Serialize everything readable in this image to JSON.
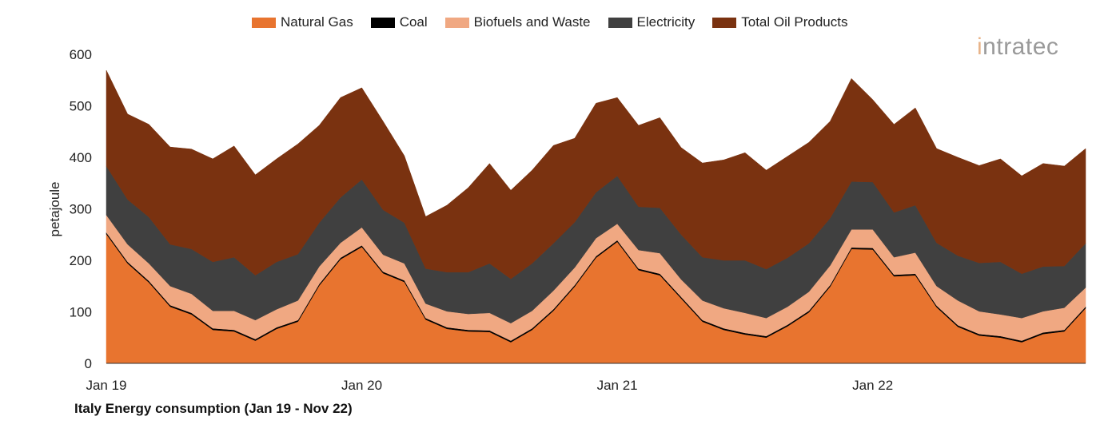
{
  "chart_data": {
    "type": "area",
    "stacked": true,
    "title": "Italy Energy consumption (Jan 19 - Nov 22)",
    "xlabel": "",
    "ylabel": "petajoule",
    "ylim": [
      0,
      600
    ],
    "yticks": [
      0,
      100,
      200,
      300,
      400,
      500,
      600
    ],
    "x_range": [
      "Jan 19",
      "Nov 22"
    ],
    "xtick_labels": [
      {
        "index": 0,
        "label": "Jan 19"
      },
      {
        "index": 12,
        "label": "Jan 20"
      },
      {
        "index": 24,
        "label": "Jan 21"
      },
      {
        "index": 36,
        "label": "Jan 22"
      }
    ],
    "grid": false,
    "legend_position": "top",
    "series": [
      {
        "name": "Natural Gas",
        "color": "#E8742F",
        "values": [
          251,
          194,
          157,
          110,
          95,
          65,
          62,
          44,
          67,
          81,
          151,
          202,
          226,
          175,
          158,
          85,
          67,
          62,
          61,
          41,
          65,
          102,
          149,
          205,
          236,
          181,
          171,
          126,
          81,
          65,
          56,
          50,
          72,
          99,
          149,
          222,
          221,
          169,
          171,
          109,
          71,
          54,
          50,
          41,
          57,
          62,
          107
        ]
      },
      {
        "name": "Coal",
        "color": "#000000",
        "values": [
          3,
          3,
          3,
          3,
          3,
          3,
          3,
          3,
          3,
          3,
          3,
          3,
          3,
          3,
          3,
          3,
          3,
          3,
          3,
          3,
          3,
          3,
          3,
          3,
          3,
          3,
          3,
          3,
          3,
          3,
          3,
          3,
          3,
          3,
          3,
          3,
          3,
          3,
          3,
          3,
          3,
          3,
          3,
          3,
          3,
          3,
          3
        ]
      },
      {
        "name": "Biofuels and Waste",
        "color": "#F0A882",
        "values": [
          34,
          34,
          34,
          37,
          37,
          34,
          37,
          37,
          35,
          38,
          34,
          29,
          35,
          33,
          33,
          28,
          31,
          31,
          34,
          34,
          34,
          36,
          34,
          35,
          32,
          36,
          40,
          34,
          38,
          39,
          39,
          35,
          35,
          37,
          38,
          35,
          36,
          34,
          41,
          38,
          48,
          44,
          42,
          44,
          41,
          43,
          37
        ]
      },
      {
        "name": "Electricity",
        "color": "#404040",
        "values": [
          95,
          87,
          90,
          81,
          87,
          95,
          104,
          87,
          92,
          90,
          85,
          88,
          93,
          87,
          79,
          68,
          76,
          81,
          96,
          86,
          92,
          92,
          88,
          89,
          93,
          84,
          88,
          87,
          84,
          93,
          102,
          95,
          95,
          94,
          92,
          93,
          92,
          87,
          92,
          84,
          87,
          94,
          102,
          86,
          87,
          81,
          86
        ]
      },
      {
        "name": "Total Oil Products",
        "color": "#7A3210",
        "values": [
          186,
          166,
          180,
          189,
          194,
          200,
          216,
          195,
          200,
          214,
          189,
          194,
          178,
          172,
          130,
          101,
          130,
          164,
          194,
          172,
          181,
          190,
          163,
          173,
          152,
          158,
          175,
          169,
          183,
          195,
          209,
          192,
          197,
          196,
          188,
          200,
          160,
          171,
          189,
          183,
          191,
          189,
          200,
          190,
          200,
          194,
          184
        ]
      }
    ]
  },
  "logo_text": "intratec"
}
